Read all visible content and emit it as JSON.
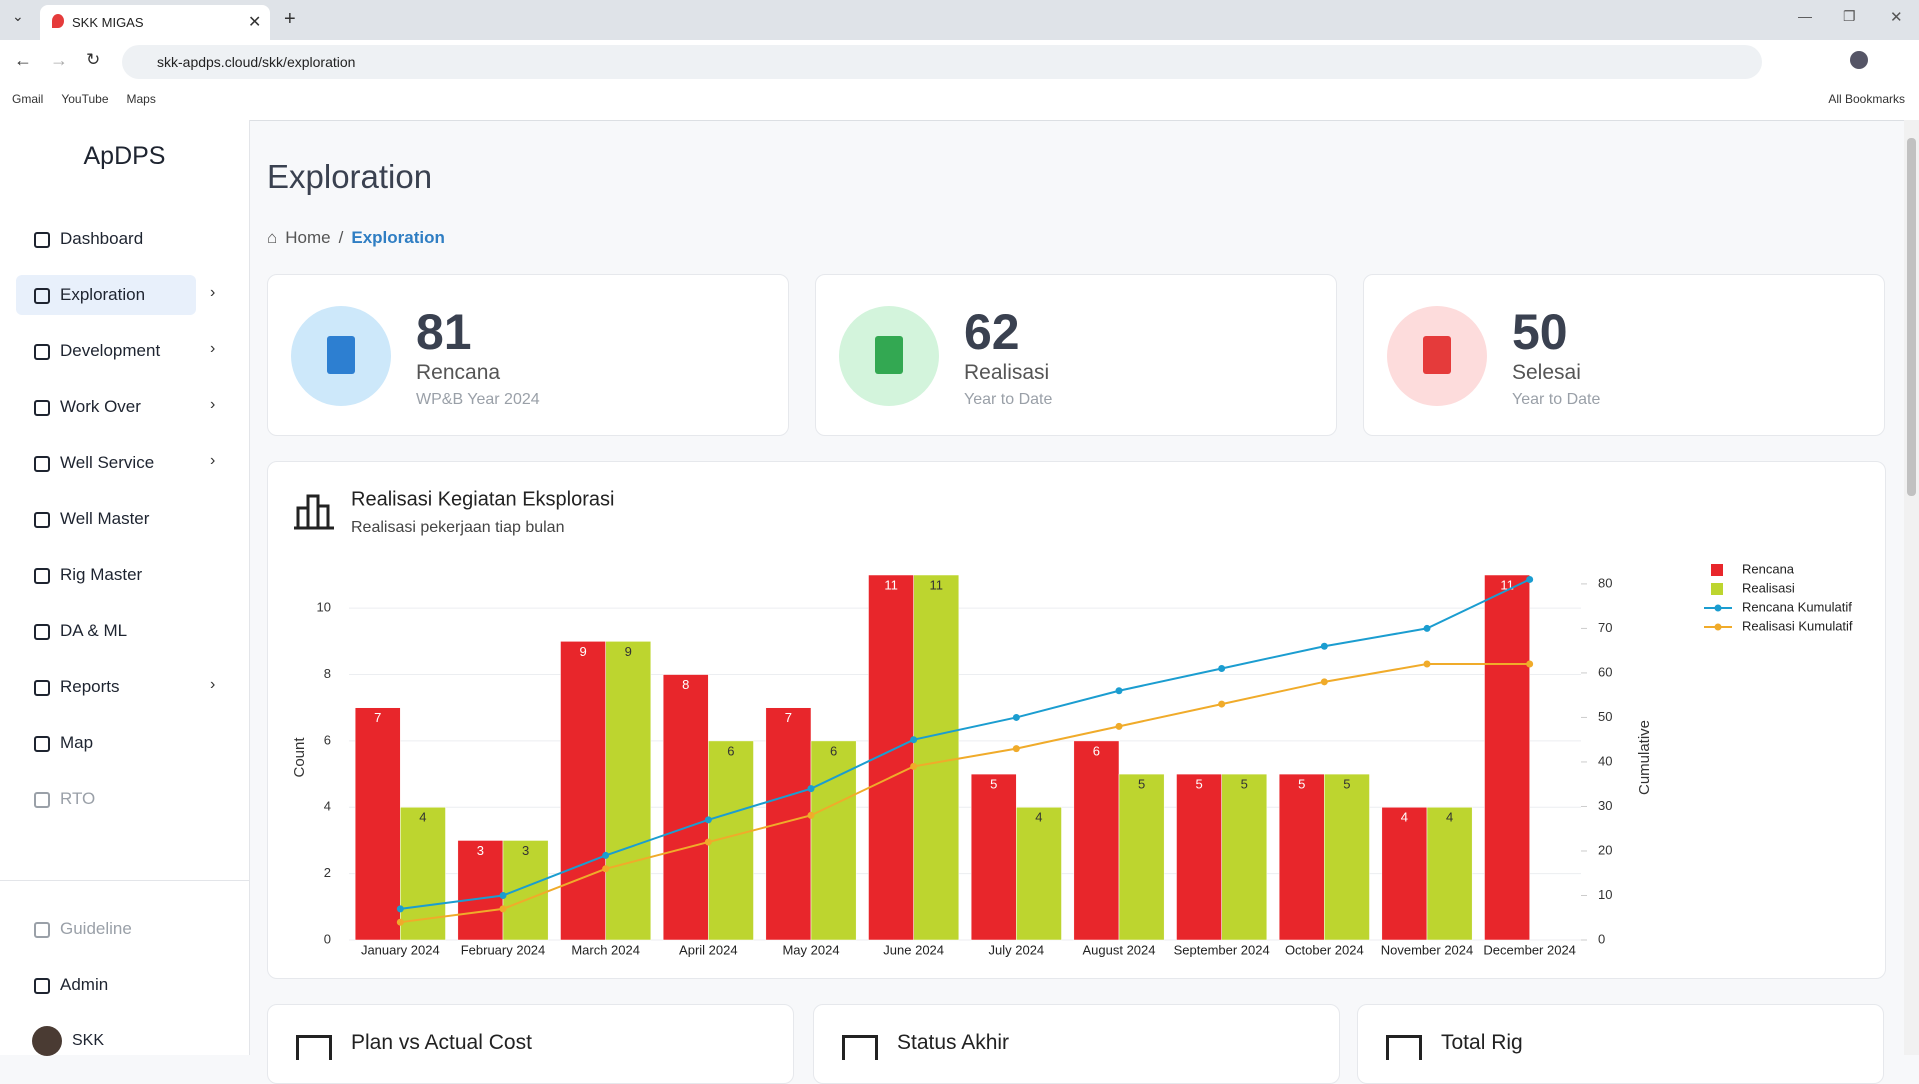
{
  "browser": {
    "tab_title": "SKK MIGAS",
    "url": "skk-apdps.cloud/skk/exploration",
    "bookmarks": [
      "Gmail",
      "YouTube",
      "Maps"
    ],
    "all_bookmarks": "All Bookmarks"
  },
  "sidebar": {
    "brand": "ApDPS",
    "nav": [
      {
        "label": "Dashboard",
        "submenu": false
      },
      {
        "label": "Exploration",
        "submenu": true,
        "active": true
      },
      {
        "label": "Development",
        "submenu": true
      },
      {
        "label": "Work Over",
        "submenu": true
      },
      {
        "label": "Well Service",
        "submenu": true
      },
      {
        "label": "Well Master",
        "submenu": false
      },
      {
        "label": "Rig Master",
        "submenu": false
      },
      {
        "label": "DA & ML",
        "submenu": false
      },
      {
        "label": "Reports",
        "submenu": true
      },
      {
        "label": "Map",
        "submenu": false
      },
      {
        "label": "RTO",
        "submenu": false,
        "disabled": true
      }
    ],
    "footer": [
      {
        "label": "Guideline",
        "disabled": true
      },
      {
        "label": "Admin"
      }
    ],
    "user": "SKK"
  },
  "header": {
    "title": "Exploration",
    "breadcrumb": [
      "Home",
      "Exploration"
    ]
  },
  "cards": [
    {
      "value": 81,
      "label": "Rencana",
      "sublabel": "WP&B Year 2024"
    },
    {
      "value": 62,
      "label": "Realisasi",
      "sublabel": "Year to Date"
    },
    {
      "value": 50,
      "label": "Selesai",
      "sublabel": "Year to Date"
    }
  ],
  "chart_data": {
    "type": "bar",
    "title": "Realisasi Kegiatan Eksplorasi",
    "subtitle": "Realisasi pekerjaan tiap bulan",
    "y_label": "Count",
    "y2_label": "Cumulative",
    "categories": [
      "January 2024",
      "February 2024",
      "March 2024",
      "April 2024",
      "May 2024",
      "June 2024",
      "July 2024",
      "August 2024",
      "September 2024",
      "October 2024",
      "November 2024",
      "December 2024"
    ],
    "series": [
      {
        "name": "Rencana",
        "type": "bar",
        "color": "#e8262b",
        "values": [
          7,
          3,
          9,
          8,
          7,
          11,
          5,
          6,
          5,
          5,
          4,
          11
        ]
      },
      {
        "name": "Realisasi",
        "type": "bar",
        "color": "#bdd52f",
        "values": [
          4,
          3,
          9,
          6,
          6,
          11,
          4,
          5,
          5,
          5,
          4,
          null
        ]
      },
      {
        "name": "Rencana Kumulatif",
        "type": "line",
        "axis": "y2",
        "color": "#1b9dd0",
        "values": [
          7,
          10,
          19,
          27,
          34,
          45,
          50,
          56,
          61,
          66,
          70,
          81
        ]
      },
      {
        "name": "Realisasi Kumulatif",
        "type": "line",
        "axis": "y2",
        "color": "#f0ab2a",
        "values": [
          4,
          7,
          16,
          22,
          28,
          39,
          43,
          48,
          53,
          58,
          62,
          62
        ]
      }
    ],
    "ylim": [
      0,
      11
    ],
    "yticks": [
      0,
      2,
      4,
      6,
      8,
      10
    ],
    "y2lim": [
      0,
      82
    ],
    "y2ticks": [
      0,
      10,
      20,
      30,
      40,
      50,
      60,
      70,
      80
    ],
    "grid": true,
    "legend": "right"
  },
  "bottom_cards": [
    "Plan vs Actual Cost",
    "Status Akhir",
    "Total Rig"
  ]
}
